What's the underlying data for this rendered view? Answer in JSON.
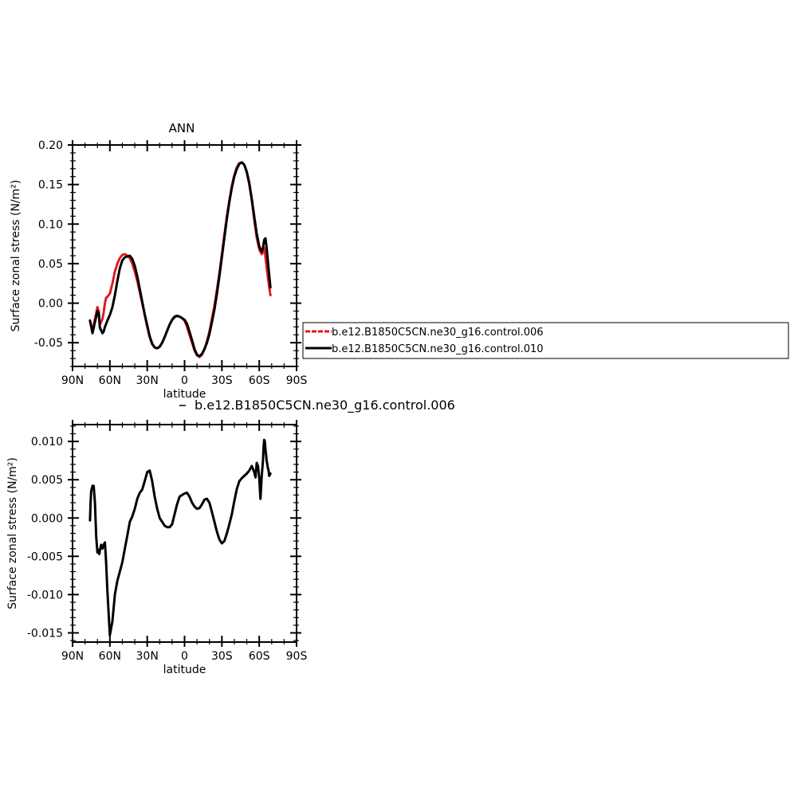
{
  "chart_data": [
    {
      "type": "line",
      "title": "ANN",
      "xlabel": "latitude",
      "ylabel": "Surface zonal stress (N/m²)",
      "xlim": [
        90,
        -90
      ],
      "ylim": [
        -0.08,
        0.2
      ],
      "x_ticks": [
        {
          "value": 90,
          "label": "90N"
        },
        {
          "value": 60,
          "label": "60N"
        },
        {
          "value": 30,
          "label": "30N"
        },
        {
          "value": 0,
          "label": "0"
        },
        {
          "value": -30,
          "label": "30S"
        },
        {
          "value": -60,
          "label": "60S"
        },
        {
          "value": -90,
          "label": "90S"
        }
      ],
      "y_ticks": [
        {
          "value": 0.2,
          "label": "0.20"
        },
        {
          "value": 0.15,
          "label": "0.15"
        },
        {
          "value": 0.1,
          "label": "0.10"
        },
        {
          "value": 0.05,
          "label": "0.05"
        },
        {
          "value": 0,
          "label": "0.00"
        },
        {
          "value": -0.05,
          "label": "-0.05"
        }
      ],
      "legend_position": "right",
      "series": [
        {
          "name": "b.e12.B1850C5CN.ne30_g16.control.006",
          "color": "#e31a1c",
          "dashed": true,
          "x": [
            76,
            74,
            72,
            70,
            69,
            68,
            66,
            65,
            64,
            63,
            62,
            60,
            58,
            56,
            54,
            52,
            50,
            48,
            46,
            44,
            42,
            40,
            38,
            36,
            34,
            32,
            30,
            28,
            26,
            24,
            22,
            20,
            18,
            16,
            14,
            12,
            10,
            8,
            6,
            4,
            2,
            0,
            -2,
            -4,
            -6,
            -8,
            -10,
            -12,
            -14,
            -16,
            -18,
            -20,
            -22,
            -24,
            -26,
            -28,
            -30,
            -32,
            -34,
            -36,
            -38,
            -40,
            -42,
            -44,
            -46,
            -48,
            -50,
            -52,
            -54,
            -56,
            -58,
            -60,
            -62,
            -63,
            -64,
            -65,
            -66,
            -67,
            -68,
            -69
          ],
          "y": [
            -0.022,
            -0.035,
            -0.02,
            -0.005,
            -0.01,
            -0.027,
            -0.02,
            -0.012,
            0.0,
            0.007,
            0.008,
            0.012,
            0.025,
            0.04,
            0.05,
            0.057,
            0.061,
            0.062,
            0.06,
            0.057,
            0.05,
            0.04,
            0.028,
            0.014,
            0.0,
            -0.015,
            -0.03,
            -0.043,
            -0.052,
            -0.056,
            -0.057,
            -0.055,
            -0.05,
            -0.043,
            -0.035,
            -0.027,
            -0.021,
            -0.018,
            -0.016,
            -0.017,
            -0.019,
            -0.022,
            -0.03,
            -0.04,
            -0.05,
            -0.06,
            -0.066,
            -0.068,
            -0.065,
            -0.058,
            -0.048,
            -0.036,
            -0.02,
            -0.003,
            0.017,
            0.038,
            0.062,
            0.087,
            0.11,
            0.13,
            0.148,
            0.162,
            0.172,
            0.177,
            0.178,
            0.175,
            0.165,
            0.15,
            0.13,
            0.105,
            0.083,
            0.068,
            0.062,
            0.065,
            0.07,
            0.058,
            0.045,
            0.032,
            0.02,
            0.01
          ]
        },
        {
          "name": "b.e12.B1850C5CN.ne30_g16.control.010",
          "color": "#000000",
          "dashed": false,
          "x": [
            76,
            74,
            72,
            70,
            69,
            68,
            66,
            65,
            64,
            63,
            62,
            60,
            58,
            56,
            54,
            52,
            50,
            48,
            46,
            44,
            42,
            40,
            38,
            36,
            34,
            32,
            30,
            28,
            26,
            24,
            22,
            20,
            18,
            16,
            14,
            12,
            10,
            8,
            6,
            4,
            2,
            0,
            -2,
            -4,
            -6,
            -8,
            -10,
            -12,
            -14,
            -16,
            -18,
            -20,
            -22,
            -24,
            -26,
            -28,
            -30,
            -32,
            -34,
            -36,
            -38,
            -40,
            -42,
            -44,
            -46,
            -48,
            -50,
            -52,
            -54,
            -56,
            -58,
            -60,
            -62,
            -63,
            -64,
            -65,
            -66,
            -67,
            -68,
            -69
          ],
          "y": [
            -0.022,
            -0.038,
            -0.024,
            -0.01,
            -0.012,
            -0.031,
            -0.038,
            -0.036,
            -0.03,
            -0.026,
            -0.022,
            -0.015,
            -0.005,
            0.01,
            0.028,
            0.044,
            0.054,
            0.058,
            0.059,
            0.06,
            0.056,
            0.047,
            0.034,
            0.018,
            0.002,
            -0.014,
            -0.028,
            -0.042,
            -0.051,
            -0.056,
            -0.057,
            -0.055,
            -0.05,
            -0.043,
            -0.035,
            -0.027,
            -0.021,
            -0.017,
            -0.016,
            -0.017,
            -0.019,
            -0.021,
            -0.026,
            -0.036,
            -0.047,
            -0.058,
            -0.065,
            -0.067,
            -0.064,
            -0.058,
            -0.05,
            -0.039,
            -0.024,
            -0.008,
            0.012,
            0.034,
            0.058,
            0.083,
            0.107,
            0.128,
            0.146,
            0.16,
            0.17,
            0.176,
            0.178,
            0.175,
            0.166,
            0.152,
            0.132,
            0.11,
            0.088,
            0.072,
            0.065,
            0.07,
            0.08,
            0.082,
            0.07,
            0.052,
            0.035,
            0.02
          ]
        }
      ]
    },
    {
      "type": "line",
      "title": "b.e12.B1850C5CN.ne30_g16.control.006",
      "xlabel": "latitude",
      "ylabel": "Surface zonal stress (N/m²)",
      "xlim": [
        90,
        -90
      ],
      "ylim": [
        -0.0162,
        0.0122
      ],
      "x_ticks": [
        {
          "value": 90,
          "label": "90N"
        },
        {
          "value": 60,
          "label": "60N"
        },
        {
          "value": 30,
          "label": "30N"
        },
        {
          "value": 0,
          "label": "0"
        },
        {
          "value": -30,
          "label": "30S"
        },
        {
          "value": -60,
          "label": "60S"
        },
        {
          "value": -90,
          "label": "90S"
        }
      ],
      "y_ticks": [
        {
          "value": 0.01,
          "label": "0.010"
        },
        {
          "value": 0.005,
          "label": "0.005"
        },
        {
          "value": 0,
          "label": "0.000"
        },
        {
          "value": -0.005,
          "label": "-0.005"
        },
        {
          "value": -0.01,
          "label": "-0.010"
        },
        {
          "value": -0.015,
          "label": "-0.015"
        }
      ],
      "series": [
        {
          "name": "",
          "color": "#000000",
          "dashed": false,
          "x": [
            76,
            75.5,
            75,
            74,
            73,
            72,
            71,
            70,
            69,
            68.5,
            68,
            67,
            66,
            65,
            64,
            63.5,
            63,
            62,
            61,
            60,
            58,
            56,
            54,
            52,
            50,
            48,
            46,
            44,
            42,
            40,
            38,
            36,
            34,
            32,
            30,
            28,
            26,
            24,
            22,
            20,
            18,
            16,
            14,
            12,
            10,
            8,
            6,
            4,
            2,
            0,
            -2,
            -4,
            -6,
            -8,
            -10,
            -12,
            -14,
            -16,
            -18,
            -20,
            -22,
            -24,
            -26,
            -28,
            -30,
            -32,
            -34,
            -36,
            -38,
            -40,
            -42,
            -44,
            -46,
            -48,
            -50,
            -52,
            -54,
            -56,
            -57,
            -58,
            -59,
            -60,
            -61,
            -62,
            -63,
            -63.5,
            -64,
            -64.5,
            -65,
            -66,
            -67,
            -67.5,
            -68,
            -69
          ],
          "y": [
            -0.0003,
            0.002,
            0.0035,
            0.0042,
            0.0042,
            0.002,
            -0.0025,
            -0.0045,
            -0.0042,
            -0.0047,
            -0.0042,
            -0.0035,
            -0.004,
            -0.0035,
            -0.0032,
            -0.0045,
            -0.006,
            -0.0095,
            -0.0125,
            -0.0153,
            -0.0135,
            -0.01,
            -0.0082,
            -0.007,
            -0.0058,
            -0.004,
            -0.0023,
            -0.0005,
            0.0002,
            0.0012,
            0.0025,
            0.0033,
            0.0037,
            0.0048,
            0.006,
            0.0062,
            0.0048,
            0.0028,
            0.0012,
            0.0,
            -0.0005,
            -0.001,
            -0.0012,
            -0.0012,
            -0.0008,
            0.0005,
            0.0018,
            0.0028,
            0.003,
            0.0032,
            0.0033,
            0.0028,
            0.002,
            0.0015,
            0.0012,
            0.0013,
            0.0018,
            0.0024,
            0.0025,
            0.002,
            0.0008,
            -0.0005,
            -0.0018,
            -0.0028,
            -0.0033,
            -0.003,
            -0.002,
            -0.0008,
            0.0005,
            0.0022,
            0.0038,
            0.0048,
            0.0052,
            0.0055,
            0.0058,
            0.0062,
            0.0068,
            0.006,
            0.0053,
            0.0072,
            0.0068,
            0.0052,
            0.0025,
            0.0055,
            0.0075,
            0.0092,
            0.0102,
            0.01,
            0.009,
            0.0075,
            0.0065,
            0.0062,
            0.0055,
            0.0058
          ]
        }
      ]
    }
  ]
}
